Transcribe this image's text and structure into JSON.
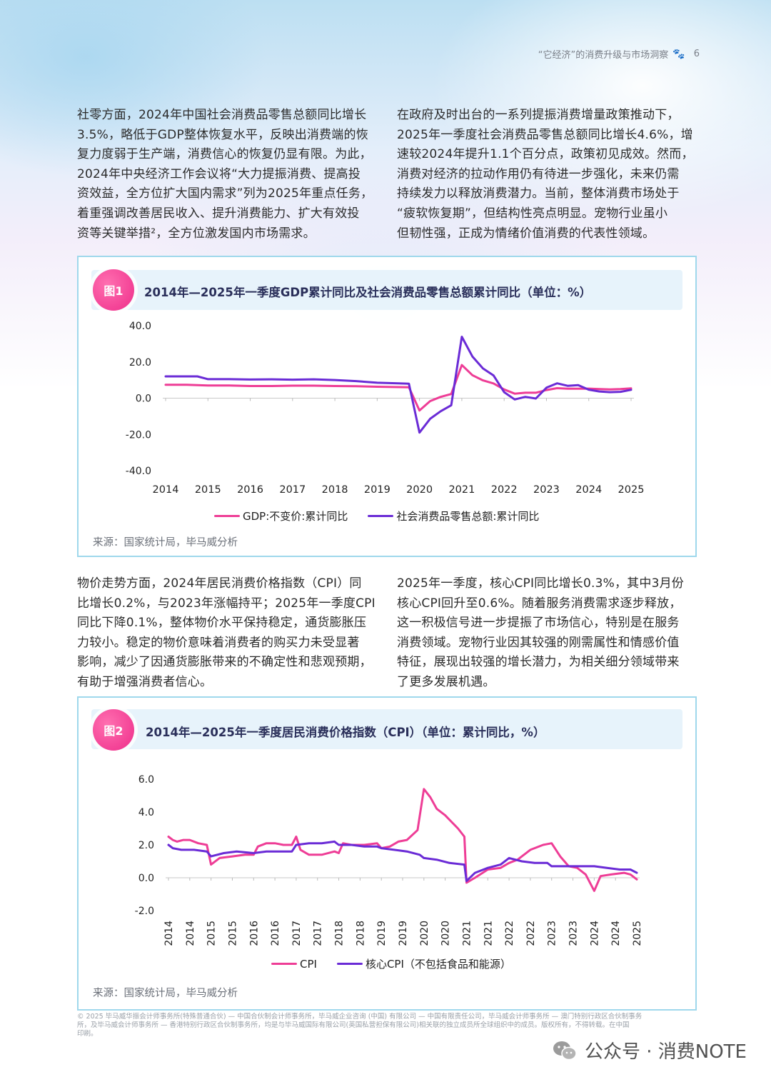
{
  "header": {
    "title": "“它经济”的消费升级与市场洞察",
    "paw_icon": "paw-icon",
    "page_number": "6"
  },
  "paragraphs": {
    "p1_lines": [
      "社零方面，2024年中国社会消费品零售总额同比增长",
      "3.5%，略低于GDP整体恢复水平，反映出消费端的恢",
      "复力度弱于生产端，消费信心的恢复仍显有限。为此，",
      "2024年中央经济工作会议将“大力提振消费、提高投",
      "资效益，全方位扩大国内需求”列为2025年重点任务，",
      "着重强调改善居民收入、提升消费能力、扩大有效投",
      "资等关键举措²，全方位激发国内市场需求。"
    ],
    "p2_lines": [
      "在政府及时出台的一系列提振消费增量政策推动下，",
      "2025年一季度社会消费品零售总额同比增长4.6%，增",
      "速较2024年提升1.1个百分点，政策初见成效。然而，",
      "消费对经济的拉动作用仍有待进一步强化，未来仍需",
      "持续发力以释放消费潜力。当前，整体消费市场处于",
      "“疲软恢复期”，但结构性亮点明显。宠物行业虽小",
      "但韧性强，正成为情绪价值消费的代表性领域。"
    ],
    "p3_lines": [
      "物价走势方面，2024年居民消费价格指数（CPI）同",
      "比增长0.2%，与2023年涨幅持平；2025年一季度CPI",
      "同比下降0.1%，整体物价水平保持稳定，通货膨胀压",
      "力较小。稳定的物价意味着消费者的购买力未受显著",
      "影响，减少了因通货膨胀带来的不确定性和悲观预期，",
      "有助于增强消费者信心。"
    ],
    "p4_lines": [
      "2025年一季度，核心CPI同比增长0.3%，其中3月份",
      "核心CPI回升至0.6%。随着服务消费需求逐步释放，",
      "这一积极信号进一步提振了市场信心，特别是在服务",
      "消费领域。宠物行业因其较强的刚需属性和情感价值",
      "特征，展现出较强的增长潜力，为相关细分领域带来",
      "了更多发展机遇。"
    ]
  },
  "figures": [
    {
      "badge": "图1",
      "title": "2014年—2025年一季度GDP累计同比及社会消费品零售总额累计同比（单位：%）",
      "source": "来源：国家统计局，毕马威分析"
    },
    {
      "badge": "图2",
      "title": "2014年—2025年一季度居民消费价格指数（CPI）（单位：累计同比，%）",
      "source": "来源：国家统计局，毕马威分析"
    }
  ],
  "chart_data": [
    {
      "type": "line",
      "title": "2014年—2025年一季度GDP累计同比及社会消费品零售总额累计同比（单位：%）",
      "xlabel": "",
      "ylabel": "",
      "ylim": [
        -40,
        40
      ],
      "yticks": [
        "40.0",
        "20.0",
        "0.0",
        "-20.0",
        "-40.0"
      ],
      "xticks": [
        "2014",
        "2015",
        "2016",
        "2017",
        "2018",
        "2019",
        "2020",
        "2021",
        "2022",
        "2023",
        "2024",
        "2025"
      ],
      "legend_position": "bottom",
      "series": [
        {
          "name": "GDP:不变价:累计同比",
          "color": "#ee3d96",
          "points": [
            [
              2014.0,
              7.4
            ],
            [
              2014.5,
              7.4
            ],
            [
              2015.0,
              7.0
            ],
            [
              2015.5,
              7.0
            ],
            [
              2016.0,
              6.7
            ],
            [
              2016.5,
              6.7
            ],
            [
              2017.0,
              6.9
            ],
            [
              2017.5,
              6.9
            ],
            [
              2018.0,
              6.7
            ],
            [
              2018.5,
              6.6
            ],
            [
              2019.0,
              6.3
            ],
            [
              2019.5,
              6.1
            ],
            [
              2019.75,
              6.0
            ],
            [
              2020.0,
              -6.8
            ],
            [
              2020.25,
              -1.6
            ],
            [
              2020.5,
              0.7
            ],
            [
              2020.75,
              2.3
            ],
            [
              2021.0,
              18.3
            ],
            [
              2021.25,
              12.7
            ],
            [
              2021.5,
              9.8
            ],
            [
              2021.75,
              8.1
            ],
            [
              2022.0,
              4.8
            ],
            [
              2022.25,
              2.5
            ],
            [
              2022.5,
              3.0
            ],
            [
              2022.75,
              3.0
            ],
            [
              2023.0,
              4.5
            ],
            [
              2023.25,
              5.5
            ],
            [
              2023.5,
              5.2
            ],
            [
              2023.75,
              5.2
            ],
            [
              2024.0,
              5.3
            ],
            [
              2024.25,
              5.0
            ],
            [
              2024.5,
              4.8
            ],
            [
              2024.75,
              5.0
            ],
            [
              2025.0,
              5.4
            ]
          ]
        },
        {
          "name": "社会消费品零售总额:累计同比",
          "color": "#6a2bd6",
          "points": [
            [
              2014.0,
              12.0
            ],
            [
              2014.5,
              12.0
            ],
            [
              2014.75,
              12.0
            ],
            [
              2015.0,
              10.5
            ],
            [
              2015.5,
              10.5
            ],
            [
              2016.0,
              10.3
            ],
            [
              2016.5,
              10.4
            ],
            [
              2017.0,
              10.2
            ],
            [
              2017.5,
              10.4
            ],
            [
              2018.0,
              10.0
            ],
            [
              2018.5,
              9.4
            ],
            [
              2019.0,
              8.5
            ],
            [
              2019.5,
              8.2
            ],
            [
              2019.75,
              8.0
            ],
            [
              2020.0,
              -19.0
            ],
            [
              2020.25,
              -11.4
            ],
            [
              2020.5,
              -7.2
            ],
            [
              2020.75,
              -3.9
            ],
            [
              2021.0,
              33.9
            ],
            [
              2021.25,
              23.0
            ],
            [
              2021.5,
              16.4
            ],
            [
              2021.75,
              12.5
            ],
            [
              2022.0,
              3.3
            ],
            [
              2022.25,
              -0.7
            ],
            [
              2022.5,
              0.7
            ],
            [
              2022.75,
              -0.2
            ],
            [
              2023.0,
              5.8
            ],
            [
              2023.25,
              8.2
            ],
            [
              2023.5,
              6.8
            ],
            [
              2023.75,
              7.2
            ],
            [
              2024.0,
              4.7
            ],
            [
              2024.25,
              3.7
            ],
            [
              2024.5,
              3.3
            ],
            [
              2024.75,
              3.5
            ],
            [
              2025.0,
              4.6
            ]
          ]
        }
      ]
    },
    {
      "type": "line",
      "title": "2014年—2025年一季度居民消费价格指数（CPI）（单位：累计同比，%）",
      "xlabel": "",
      "ylabel": "",
      "ylim": [
        -2,
        6
      ],
      "yticks": [
        "6.0",
        "4.0",
        "2.0",
        "0.0",
        "-2.0"
      ],
      "xticks": [
        "2014",
        "2014",
        "2015",
        "2015",
        "2016",
        "2016",
        "2017",
        "2017",
        "2018",
        "2018",
        "2019",
        "2019",
        "2020",
        "2020",
        "2021",
        "2021",
        "2022",
        "2022",
        "2023",
        "2023",
        "2024",
        "2024",
        "2025"
      ],
      "legend_position": "bottom",
      "series": [
        {
          "name": "CPI",
          "color": "#ee3d96",
          "points": [
            [
              2014.0,
              2.5
            ],
            [
              2014.1,
              2.3
            ],
            [
              2014.2,
              2.2
            ],
            [
              2014.35,
              2.3
            ],
            [
              2014.5,
              2.3
            ],
            [
              2014.7,
              2.1
            ],
            [
              2014.9,
              2.0
            ],
            [
              2015.0,
              0.8
            ],
            [
              2015.2,
              1.2
            ],
            [
              2015.5,
              1.3
            ],
            [
              2015.8,
              1.4
            ],
            [
              2016.0,
              1.4
            ],
            [
              2016.1,
              1.9
            ],
            [
              2016.3,
              2.1
            ],
            [
              2016.5,
              2.1
            ],
            [
              2016.7,
              2.0
            ],
            [
              2016.9,
              2.0
            ],
            [
              2017.0,
              2.5
            ],
            [
              2017.1,
              1.7
            ],
            [
              2017.3,
              1.4
            ],
            [
              2017.6,
              1.4
            ],
            [
              2017.9,
              1.6
            ],
            [
              2018.0,
              1.5
            ],
            [
              2018.1,
              2.1
            ],
            [
              2018.3,
              2.0
            ],
            [
              2018.6,
              2.0
            ],
            [
              2018.9,
              2.1
            ],
            [
              2019.0,
              1.8
            ],
            [
              2019.2,
              1.9
            ],
            [
              2019.4,
              2.2
            ],
            [
              2019.6,
              2.3
            ],
            [
              2019.85,
              2.9
            ],
            [
              2020.0,
              5.4
            ],
            [
              2020.15,
              4.9
            ],
            [
              2020.3,
              4.2
            ],
            [
              2020.5,
              3.8
            ],
            [
              2020.8,
              3.0
            ],
            [
              2020.95,
              2.5
            ],
            [
              2021.0,
              -0.3
            ],
            [
              2021.2,
              0.0
            ],
            [
              2021.5,
              0.5
            ],
            [
              2021.8,
              0.6
            ],
            [
              2022.0,
              0.9
            ],
            [
              2022.2,
              1.1
            ],
            [
              2022.5,
              1.7
            ],
            [
              2022.8,
              2.0
            ],
            [
              2023.0,
              2.1
            ],
            [
              2023.2,
              1.3
            ],
            [
              2023.4,
              0.7
            ],
            [
              2023.6,
              0.6
            ],
            [
              2023.8,
              0.2
            ],
            [
              2024.0,
              -0.8
            ],
            [
              2024.15,
              0.1
            ],
            [
              2024.4,
              0.2
            ],
            [
              2024.7,
              0.3
            ],
            [
              2024.85,
              0.2
            ],
            [
              2025.0,
              -0.1
            ]
          ]
        },
        {
          "name": "核心CPI（不包括食品和能源）",
          "color": "#6a2bd6",
          "points": [
            [
              2014.0,
              2.0
            ],
            [
              2014.1,
              1.8
            ],
            [
              2014.3,
              1.7
            ],
            [
              2014.6,
              1.7
            ],
            [
              2014.9,
              1.6
            ],
            [
              2015.0,
              1.3
            ],
            [
              2015.3,
              1.5
            ],
            [
              2015.6,
              1.6
            ],
            [
              2016.0,
              1.5
            ],
            [
              2016.3,
              1.6
            ],
            [
              2016.6,
              1.6
            ],
            [
              2016.9,
              1.6
            ],
            [
              2017.0,
              2.0
            ],
            [
              2017.3,
              2.1
            ],
            [
              2017.6,
              2.1
            ],
            [
              2017.9,
              2.2
            ],
            [
              2018.0,
              2.0
            ],
            [
              2018.3,
              2.0
            ],
            [
              2018.6,
              1.9
            ],
            [
              2018.9,
              1.9
            ],
            [
              2019.0,
              1.8
            ],
            [
              2019.3,
              1.7
            ],
            [
              2019.6,
              1.6
            ],
            [
              2019.9,
              1.4
            ],
            [
              2020.0,
              1.2
            ],
            [
              2020.3,
              1.1
            ],
            [
              2020.6,
              0.9
            ],
            [
              2020.95,
              0.8
            ],
            [
              2021.0,
              -0.2
            ],
            [
              2021.2,
              0.3
            ],
            [
              2021.5,
              0.6
            ],
            [
              2021.8,
              0.8
            ],
            [
              2022.0,
              1.2
            ],
            [
              2022.3,
              1.0
            ],
            [
              2022.6,
              0.9
            ],
            [
              2022.9,
              0.9
            ],
            [
              2023.0,
              0.7
            ],
            [
              2023.3,
              0.7
            ],
            [
              2023.6,
              0.7
            ],
            [
              2023.9,
              0.7
            ],
            [
              2024.0,
              0.7
            ],
            [
              2024.3,
              0.6
            ],
            [
              2024.6,
              0.5
            ],
            [
              2024.85,
              0.5
            ],
            [
              2025.0,
              0.3
            ]
          ]
        }
      ]
    }
  ],
  "footer": {
    "lines": [
      "© 2025 毕马威华振会计师事务所(特殊普通合伙) — 中国合伙制会计师事务所，毕马威企业咨询 (中国) 有限公司 — 中国有限责任公司，毕马威会计师事务所 — 澳门特别行政区合伙制事务",
      "所，及毕马威会计师事务所 — 香港特别行政区合伙制事务所，均是与毕马威国际有限公司(英国私营担保有限公司)相关联的独立成员所全球组织中的成员。版权所有，不得转载。在中国",
      "印刷。"
    ]
  },
  "watermark": {
    "text": "公众号 · 消费NOTE",
    "icon": "wechat-icon"
  }
}
